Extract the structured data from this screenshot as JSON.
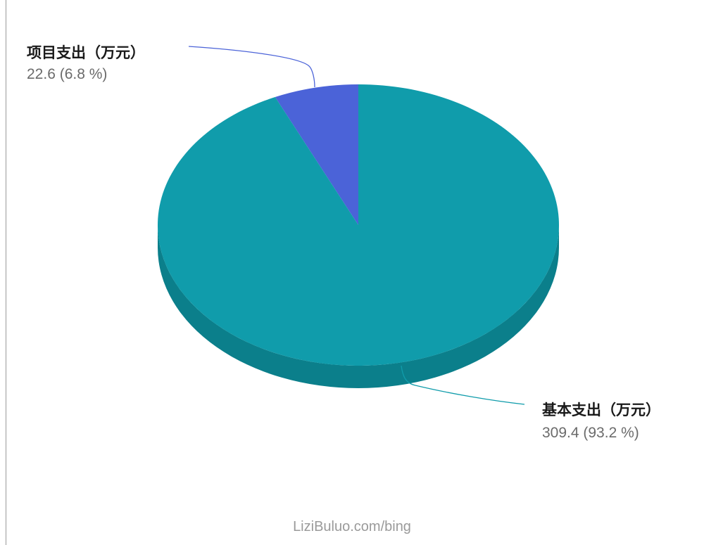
{
  "chart_data": {
    "type": "pie",
    "title": "",
    "slices": [
      {
        "name": "项目支出（万元）",
        "value": 22.6,
        "percent": 6.8,
        "value_text": "22.6 (6.8 %)",
        "color": "#4b63d8",
        "side_color": "#3a4fb5"
      },
      {
        "name": "基本支出（万元）",
        "value": 309.4,
        "percent": 93.2,
        "value_text": "309.4 (93.2 %)",
        "color": "#109cab",
        "side_color": "#0b7f8b"
      }
    ],
    "legend": "none"
  },
  "watermark": "LiziBuluo.com/bing"
}
